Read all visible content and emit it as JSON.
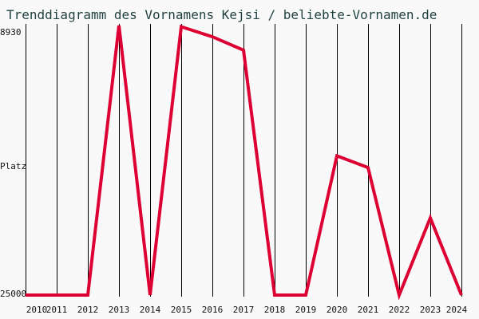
{
  "chart_data": {
    "type": "line",
    "title": "Trenddiagramm des Vornamens Kejsi / beliebte-Vornamen.de",
    "ylabel": "Platz",
    "y_top_label": "8930",
    "y_bottom_label": "25000",
    "ylim": [
      8930,
      25000
    ],
    "y_inverted": true,
    "grid": "vertical lines per year",
    "line_color": "#dd0033",
    "x": [
      "2010",
      "2011",
      "2012",
      "2013",
      "2014",
      "2015",
      "2016",
      "2017",
      "2018",
      "2019",
      "2020",
      "2021",
      "2022",
      "2023",
      "2024"
    ],
    "series": [
      {
        "values": [
          25000,
          25000,
          25000,
          8930,
          25000,
          9000,
          9600,
          10400,
          25000,
          25000,
          16700,
          17400,
          25000,
          20400,
          25000
        ]
      }
    ]
  }
}
